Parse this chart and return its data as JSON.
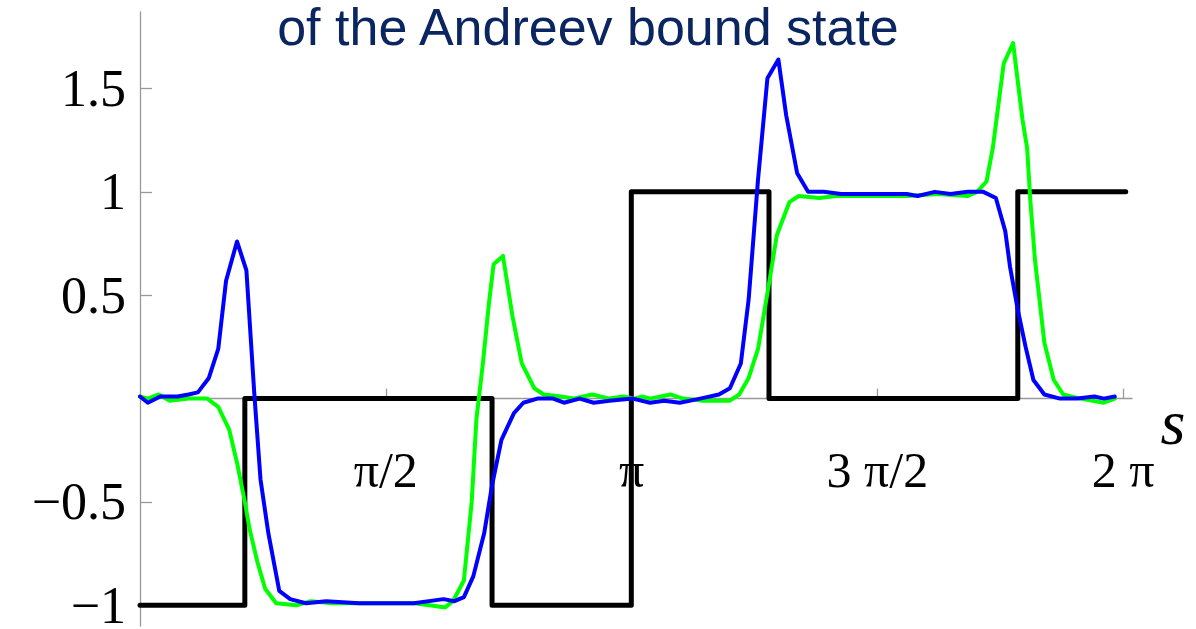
{
  "chart_data": {
    "type": "line",
    "title": "of the Andreev bound state",
    "xlabel": "s",
    "xlim": [
      0,
      6.34
    ],
    "ylim": [
      -1.1,
      1.87
    ],
    "xticks": [
      {
        "value": 1.5708,
        "label": "π/2"
      },
      {
        "value": 3.1416,
        "label": "π"
      },
      {
        "value": 4.7124,
        "label": "3 π/2"
      },
      {
        "value": 6.2832,
        "label": "2 π"
      }
    ],
    "yticks": [
      {
        "value": -1,
        "label": "−1"
      },
      {
        "value": -0.5,
        "label": "−0.5"
      },
      0.5,
      1,
      1.5
    ],
    "grid": false,
    "marker": "none",
    "line_style": "solid",
    "series": [
      {
        "type": "step",
        "color": "#000000",
        "x": [
          0,
          0.67,
          2.25,
          3.14,
          4.02,
          5.61,
          6.3
        ],
        "values": [
          -1,
          0,
          -1,
          1,
          0,
          1,
          1
        ]
      },
      {
        "color": "#00ff00",
        "x": [
          0,
          0.05,
          0.12,
          0.19,
          0.31,
          0.43,
          0.5,
          0.57,
          0.62,
          0.67,
          0.7,
          0.75,
          0.8,
          0.87,
          1.0,
          1.09,
          1.23,
          1.44,
          1.75,
          1.85,
          1.95,
          2.0,
          2.07,
          2.12,
          2.15,
          2.19,
          2.23,
          2.26,
          2.32,
          2.38,
          2.44,
          2.52,
          2.58,
          2.69,
          2.77,
          2.89,
          3.0,
          3.09,
          3.16,
          3.21,
          3.26,
          3.39,
          3.47,
          3.6,
          3.77,
          3.83,
          3.89,
          3.95,
          4.01,
          4.07,
          4.15,
          4.21,
          4.34,
          4.45,
          4.7,
          4.9,
          5.1,
          5.29,
          5.35,
          5.41,
          5.45,
          5.52,
          5.58,
          5.64,
          5.67,
          5.69,
          5.72,
          5.78,
          5.84,
          5.9,
          6.01,
          6.16,
          6.23
        ],
        "values": [
          0.01,
          0,
          0.02,
          -0.01,
          0,
          0,
          -0.04,
          -0.15,
          -0.31,
          -0.5,
          -0.63,
          -0.79,
          -0.92,
          -0.99,
          -1.0,
          -0.98,
          -0.99,
          -0.99,
          -0.99,
          -1.0,
          -1.01,
          -0.98,
          -0.88,
          -0.5,
          -0.1,
          0.16,
          0.46,
          0.65,
          0.69,
          0.4,
          0.17,
          0.05,
          0.02,
          0.01,
          0,
          0.02,
          0,
          0.01,
          0,
          0.01,
          0,
          0.02,
          0,
          -0.01,
          -0.01,
          0.02,
          0.1,
          0.24,
          0.51,
          0.79,
          0.95,
          0.98,
          0.97,
          0.98,
          0.98,
          0.98,
          0.99,
          0.98,
          1.0,
          1.05,
          1.21,
          1.62,
          1.72,
          1.35,
          1.21,
          0.96,
          0.67,
          0.27,
          0.09,
          0.02,
          0,
          -0.02,
          0
        ]
      },
      {
        "color": "#0000ff",
        "x": [
          0,
          0.05,
          0.13,
          0.24,
          0.31,
          0.37,
          0.44,
          0.5,
          0.55,
          0.62,
          0.68,
          0.73,
          0.77,
          0.82,
          0.89,
          0.96,
          1.06,
          1.19,
          1.4,
          1.75,
          1.94,
          2.01,
          2.07,
          2.13,
          2.2,
          2.25,
          2.31,
          2.39,
          2.45,
          2.54,
          2.64,
          2.71,
          2.81,
          2.9,
          3.0,
          3.15,
          3.26,
          3.35,
          3.45,
          3.58,
          3.7,
          3.77,
          3.84,
          3.89,
          3.95,
          4.01,
          4.08,
          4.13,
          4.2,
          4.27,
          4.37,
          4.48,
          4.65,
          4.9,
          4.97,
          5.08,
          5.18,
          5.29,
          5.39,
          5.47,
          5.53,
          5.56,
          5.61,
          5.66,
          5.71,
          5.78,
          5.88,
          5.99,
          6.1,
          6.16,
          6.23
        ],
        "values": [
          0.01,
          -0.02,
          0.01,
          0.01,
          0.02,
          0.03,
          0.1,
          0.24,
          0.57,
          0.76,
          0.62,
          0.03,
          -0.39,
          -0.65,
          -0.93,
          -0.97,
          -0.99,
          -0.98,
          -0.99,
          -0.99,
          -0.97,
          -0.98,
          -0.96,
          -0.86,
          -0.65,
          -0.42,
          -0.2,
          -0.07,
          -0.02,
          0,
          0,
          -0.02,
          0,
          -0.02,
          -0.01,
          0,
          -0.02,
          -0.01,
          -0.02,
          0,
          0.02,
          0.05,
          0.17,
          0.48,
          1.06,
          1.55,
          1.64,
          1.37,
          1.09,
          1.0,
          1.0,
          0.99,
          0.99,
          0.99,
          0.98,
          1.0,
          0.99,
          1.0,
          1.0,
          0.97,
          0.81,
          0.64,
          0.43,
          0.25,
          0.09,
          0.02,
          0,
          0,
          0.01,
          0,
          0.01
        ]
      }
    ]
  }
}
